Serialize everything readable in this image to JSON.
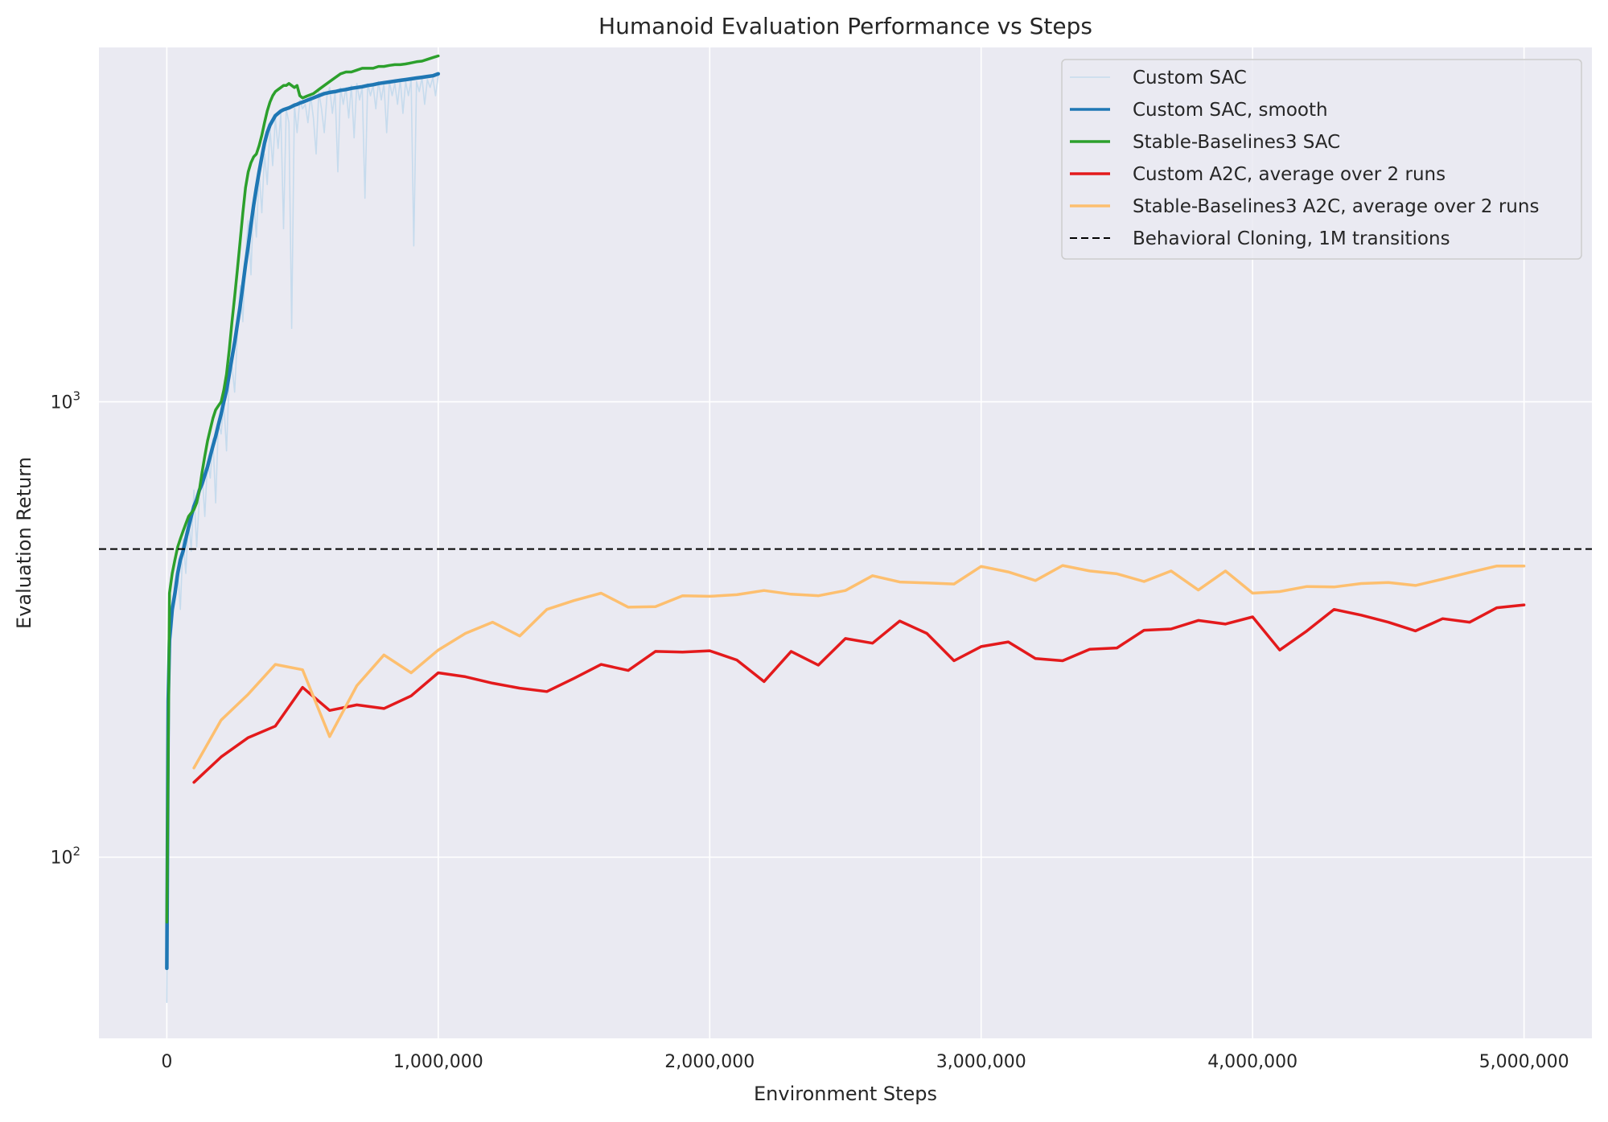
{
  "chart_data": {
    "type": "line",
    "title": "Humanoid Evaluation Performance vs Steps",
    "xlabel": "Environment Steps",
    "ylabel": "Evaluation Return",
    "xlim": [
      -250000,
      5250000
    ],
    "ylim": [
      40,
      6000
    ],
    "yscale": "log",
    "x_ticks": [
      0,
      1000000,
      2000000,
      3000000,
      4000000,
      5000000
    ],
    "x_tick_labels": [
      "0",
      "1,000,000",
      "2,000,000",
      "3,000,000",
      "4,000,000",
      "5,000,000"
    ],
    "y_ticks": [
      100,
      1000
    ],
    "y_tick_labels": [
      {
        "base": "10",
        "exp": "2"
      },
      {
        "base": "10",
        "exp": "3"
      }
    ],
    "grid": true,
    "legend_position": "top-right",
    "series": [
      {
        "name": "Custom SAC",
        "color": "#c6dbed",
        "x": [
          0,
          5000,
          10000,
          20000,
          30000,
          40000,
          50000,
          60000,
          70000,
          80000,
          90000,
          100000,
          110000,
          120000,
          130000,
          140000,
          150000,
          160000,
          170000,
          180000,
          190000,
          200000,
          210000,
          220000,
          230000,
          240000,
          250000,
          260000,
          270000,
          280000,
          290000,
          300000,
          310000,
          320000,
          330000,
          340000,
          350000,
          360000,
          370000,
          380000,
          390000,
          400000,
          410000,
          420000,
          430000,
          440000,
          450000,
          460000,
          470000,
          480000,
          490000,
          500000,
          510000,
          520000,
          530000,
          540000,
          550000,
          560000,
          570000,
          580000,
          590000,
          600000,
          610000,
          620000,
          630000,
          640000,
          650000,
          660000,
          670000,
          680000,
          690000,
          700000,
          710000,
          720000,
          730000,
          740000,
          750000,
          760000,
          770000,
          780000,
          790000,
          800000,
          810000,
          820000,
          830000,
          840000,
          850000,
          860000,
          870000,
          880000,
          890000,
          900000,
          910000,
          920000,
          930000,
          940000,
          950000,
          960000,
          970000,
          980000,
          990000,
          1000000
        ],
        "values": [
          48,
          180,
          280,
          320,
          400,
          430,
          350,
          500,
          420,
          560,
          470,
          640,
          480,
          620,
          700,
          560,
          740,
          680,
          830,
          600,
          900,
          850,
          1000,
          780,
          1150,
          1200,
          1050,
          1400,
          1800,
          1500,
          2100,
          2500,
          1900,
          2800,
          2300,
          3200,
          2600,
          3500,
          3000,
          4000,
          3300,
          4200,
          3600,
          4300,
          2400,
          4400,
          4100,
          1450,
          4500,
          3900,
          4600,
          4400,
          4500,
          4100,
          4700,
          4200,
          3500,
          4800,
          4400,
          3900,
          4700,
          4900,
          4300,
          4800,
          3200,
          4900,
          4500,
          4900,
          4200,
          4950,
          3800,
          5000,
          4600,
          4900,
          2800,
          5000,
          4700,
          4950,
          4400,
          5050,
          4600,
          5000,
          3900,
          5050,
          4700,
          5000,
          4500,
          5100,
          4300,
          5050,
          4700,
          5100,
          2200,
          5050,
          4800,
          5150,
          4500,
          5100,
          4900,
          5150,
          4700,
          5200
        ]
      },
      {
        "name": "Custom SAC, smooth",
        "color": "#1f77b4",
        "x": [
          0,
          5000,
          10000,
          20000,
          30000,
          40000,
          50000,
          60000,
          70000,
          80000,
          90000,
          100000,
          110000,
          120000,
          130000,
          140000,
          150000,
          160000,
          170000,
          180000,
          190000,
          200000,
          210000,
          220000,
          230000,
          240000,
          250000,
          260000,
          270000,
          280000,
          290000,
          300000,
          310000,
          320000,
          330000,
          340000,
          350000,
          360000,
          370000,
          380000,
          390000,
          400000,
          410000,
          420000,
          430000,
          440000,
          450000,
          460000,
          470000,
          480000,
          490000,
          500000,
          520000,
          540000,
          560000,
          580000,
          600000,
          620000,
          640000,
          660000,
          680000,
          700000,
          720000,
          740000,
          760000,
          780000,
          800000,
          820000,
          840000,
          860000,
          880000,
          900000,
          920000,
          940000,
          960000,
          980000,
          1000000
        ],
        "values": [
          57,
          220,
          300,
          350,
          380,
          420,
          450,
          470,
          500,
          530,
          560,
          590,
          610,
          640,
          660,
          690,
          720,
          760,
          800,
          840,
          890,
          940,
          1000,
          1060,
          1150,
          1250,
          1350,
          1480,
          1620,
          1800,
          2000,
          2200,
          2450,
          2700,
          2950,
          3200,
          3450,
          3700,
          3900,
          4050,
          4150,
          4250,
          4300,
          4350,
          4380,
          4400,
          4420,
          4450,
          4480,
          4500,
          4530,
          4550,
          4600,
          4650,
          4700,
          4750,
          4780,
          4800,
          4830,
          4850,
          4880,
          4900,
          4920,
          4950,
          4970,
          5000,
          5020,
          5040,
          5060,
          5080,
          5100,
          5120,
          5140,
          5160,
          5180,
          5200,
          5250
        ]
      },
      {
        "name": "Stable-Baselines3 SAC",
        "color": "#2ca02c",
        "x": [
          0,
          10000,
          20000,
          30000,
          40000,
          50000,
          60000,
          70000,
          80000,
          90000,
          100000,
          110000,
          120000,
          130000,
          140000,
          150000,
          160000,
          170000,
          180000,
          190000,
          200000,
          210000,
          220000,
          230000,
          240000,
          250000,
          260000,
          270000,
          280000,
          290000,
          300000,
          310000,
          320000,
          330000,
          340000,
          350000,
          360000,
          370000,
          380000,
          390000,
          400000,
          410000,
          420000,
          430000,
          440000,
          450000,
          460000,
          470000,
          480000,
          490000,
          500000,
          520000,
          540000,
          560000,
          580000,
          600000,
          620000,
          640000,
          660000,
          680000,
          700000,
          720000,
          740000,
          760000,
          780000,
          800000,
          820000,
          840000,
          860000,
          880000,
          900000,
          920000,
          940000,
          960000,
          980000,
          1000000
        ],
        "values": [
          72,
          380,
          420,
          450,
          480,
          500,
          520,
          540,
          560,
          570,
          580,
          600,
          640,
          700,
          760,
          820,
          870,
          920,
          960,
          980,
          1000,
          1060,
          1150,
          1300,
          1500,
          1700,
          1950,
          2250,
          2600,
          2950,
          3200,
          3350,
          3450,
          3500,
          3650,
          3850,
          4100,
          4350,
          4550,
          4700,
          4800,
          4850,
          4900,
          4950,
          4950,
          5000,
          4950,
          4900,
          4950,
          4700,
          4650,
          4700,
          4750,
          4850,
          4950,
          5050,
          5150,
          5250,
          5300,
          5300,
          5350,
          5400,
          5400,
          5400,
          5450,
          5450,
          5480,
          5500,
          5500,
          5520,
          5550,
          5580,
          5600,
          5650,
          5700,
          5750
        ]
      },
      {
        "name": "Custom A2C, average over 2 runs",
        "color": "#e31a1c",
        "x": [
          100000,
          200000,
          300000,
          400000,
          500000,
          600000,
          700000,
          800000,
          900000,
          1000000,
          1100000,
          1200000,
          1300000,
          1400000,
          1500000,
          1600000,
          1700000,
          1800000,
          1900000,
          2000000,
          2100000,
          2200000,
          2300000,
          2400000,
          2500000,
          2600000,
          2700000,
          2800000,
          2900000,
          3000000,
          3100000,
          3200000,
          3300000,
          3400000,
          3500000,
          3600000,
          3700000,
          3800000,
          3900000,
          4000000,
          4100000,
          4200000,
          4300000,
          4400000,
          4500000,
          4600000,
          4700000,
          4800000,
          4900000,
          5000000
        ],
        "values": [
          146,
          166,
          183,
          194,
          236,
          210,
          216,
          212,
          226,
          254,
          249,
          241,
          235,
          231,
          247,
          265,
          257,
          283,
          282,
          284,
          271,
          243,
          283,
          264,
          302,
          295,
          330,
          310,
          270,
          290,
          297,
          273,
          270,
          286,
          288,
          315,
          317,
          331,
          325,
          337,
          285,
          314,
          350,
          340,
          328,
          314,
          334,
          328,
          353,
          358
        ]
      },
      {
        "name": "Stable-Baselines3 A2C, average over 2 runs",
        "color": "#fdbf6f",
        "x": [
          100000,
          200000,
          300000,
          400000,
          500000,
          600000,
          700000,
          800000,
          900000,
          1000000,
          1100000,
          1200000,
          1300000,
          1400000,
          1500000,
          1600000,
          1700000,
          1800000,
          1900000,
          2000000,
          2100000,
          2200000,
          2300000,
          2400000,
          2500000,
          2600000,
          2700000,
          2800000,
          2900000,
          3000000,
          3100000,
          3200000,
          3300000,
          3400000,
          3500000,
          3600000,
          3700000,
          3800000,
          3900000,
          4000000,
          4100000,
          4200000,
          4300000,
          4400000,
          4500000,
          4600000,
          4700000,
          4800000,
          4900000,
          5000000
        ],
        "values": [
          157,
          200,
          228,
          265,
          258,
          184,
          238,
          278,
          254,
          285,
          310,
          328,
          306,
          350,
          366,
          380,
          354,
          355,
          375,
          374,
          377,
          385,
          378,
          375,
          385,
          415,
          402,
          400,
          398,
          435,
          423,
          405,
          437,
          425,
          419,
          403,
          425,
          386,
          425,
          380,
          383,
          393,
          392,
          399,
          401,
          395,
          408,
          422,
          436,
          436
        ]
      },
      {
        "name": "Behavioral Cloning, 1M transitions",
        "color": "#000000",
        "dashed": true,
        "constant": 475
      }
    ]
  }
}
